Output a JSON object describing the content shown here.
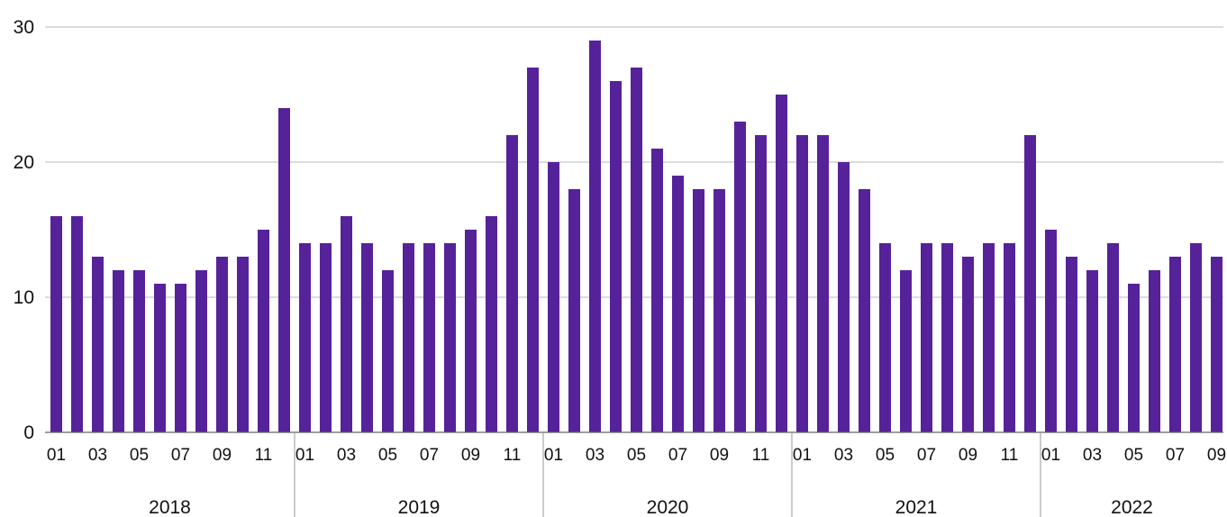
{
  "chart_data": {
    "type": "bar",
    "title": "",
    "xlabel": "",
    "ylabel": "",
    "ylim": [
      0,
      30
    ],
    "yticks": [
      0,
      10,
      20,
      30
    ],
    "grid": true,
    "legend": "none",
    "bar_color": "#56229a",
    "grid_color": "#b8b8b8",
    "years": [
      {
        "label": "2018",
        "months": 12
      },
      {
        "label": "2019",
        "months": 12
      },
      {
        "label": "2020",
        "months": 12
      },
      {
        "label": "2021",
        "months": 12
      },
      {
        "label": "2022",
        "months": 9
      }
    ],
    "month_tick_labels": [
      "01",
      "03",
      "05",
      "07",
      "09",
      "11"
    ],
    "values": [
      16,
      16,
      13,
      12,
      12,
      11,
      11,
      12,
      13,
      13,
      15,
      24,
      14,
      14,
      16,
      14,
      12,
      14,
      14,
      14,
      15,
      16,
      22,
      27,
      20,
      18,
      29,
      26,
      27,
      21,
      19,
      18,
      18,
      23,
      22,
      25,
      22,
      22,
      20,
      18,
      14,
      12,
      14,
      14,
      13,
      14,
      14,
      22,
      15,
      13,
      12,
      14,
      11,
      12,
      13,
      14,
      13
    ]
  }
}
